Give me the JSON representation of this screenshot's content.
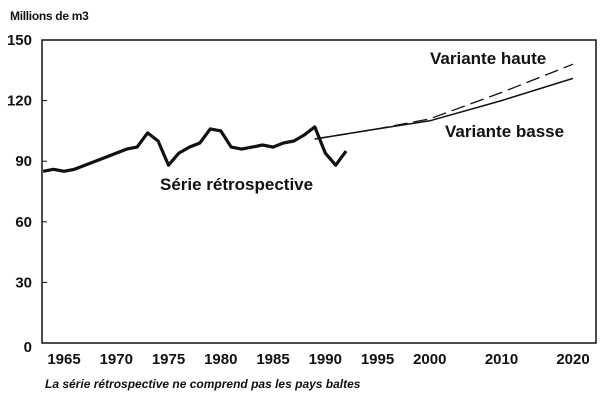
{
  "chart_data": {
    "type": "line",
    "ylabel": "Millions de m3",
    "ylim": [
      0,
      150
    ],
    "yticks": [
      0,
      30,
      60,
      90,
      120,
      150
    ],
    "xticks": [
      "1965",
      "1970",
      "1975",
      "1980",
      "1985",
      "1990",
      "1995",
      "2000",
      "2010",
      "2020"
    ],
    "grid": false,
    "note": "La série rétrospective ne comprend pas les pays baltes",
    "series": [
      {
        "name": "Série rétrospective",
        "style": "solid-thick",
        "x": [
          1963,
          1964,
          1965,
          1966,
          1967,
          1968,
          1969,
          1970,
          1971,
          1972,
          1973,
          1974,
          1975,
          1976,
          1977,
          1978,
          1979,
          1980,
          1981,
          1982,
          1983,
          1984,
          1985,
          1986,
          1987,
          1988,
          1989,
          1990,
          1991,
          1992
        ],
        "y": [
          85,
          86,
          85,
          86,
          88,
          90,
          92,
          94,
          96,
          97,
          104,
          100,
          88,
          94,
          97,
          99,
          106,
          105,
          97,
          96,
          97,
          98,
          97,
          99,
          100,
          103,
          107,
          94,
          88,
          95
        ]
      },
      {
        "name": "Variante haute",
        "style": "dashed",
        "x": [
          1989,
          1995,
          2000,
          2010,
          2020
        ],
        "y": [
          101,
          106,
          111,
          124,
          138
        ]
      },
      {
        "name": "Variante basse",
        "style": "solid",
        "x": [
          1989,
          1995,
          2000,
          2010,
          2020
        ],
        "y": [
          101,
          106,
          110,
          120,
          131
        ]
      }
    ]
  }
}
